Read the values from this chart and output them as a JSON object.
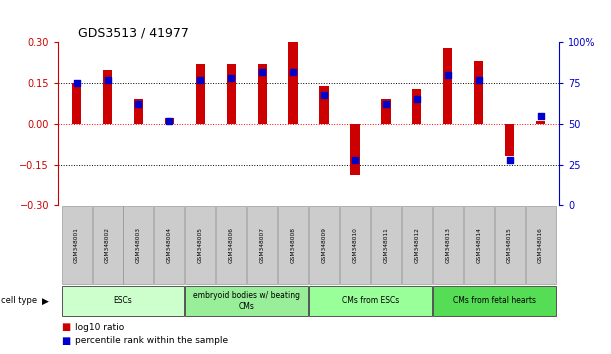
{
  "title": "GDS3513 / 41977",
  "samples": [
    "GSM348001",
    "GSM348002",
    "GSM348003",
    "GSM348004",
    "GSM348005",
    "GSM348006",
    "GSM348007",
    "GSM348008",
    "GSM348009",
    "GSM348010",
    "GSM348011",
    "GSM348012",
    "GSM348013",
    "GSM348014",
    "GSM348015",
    "GSM348016"
  ],
  "log10_ratio": [
    0.15,
    0.2,
    0.09,
    0.02,
    0.22,
    0.22,
    0.22,
    0.3,
    0.14,
    -0.19,
    0.09,
    0.13,
    0.28,
    0.23,
    -0.12,
    0.01
  ],
  "percentile_rank": [
    75,
    77,
    62,
    52,
    77,
    78,
    82,
    82,
    68,
    28,
    62,
    65,
    80,
    77,
    28,
    55
  ],
  "ylim_left": [
    -0.3,
    0.3
  ],
  "ylim_right": [
    0,
    100
  ],
  "yticks_left": [
    -0.3,
    -0.15,
    0,
    0.15,
    0.3
  ],
  "yticks_right": [
    0,
    25,
    50,
    75,
    100
  ],
  "ytick_labels_right": [
    "0",
    "25",
    "50",
    "75",
    "100%"
  ],
  "hline_dotted": [
    0.15,
    -0.15
  ],
  "bar_color": "#cc0000",
  "dot_color": "#0000cc",
  "cell_groups": [
    {
      "label": "ESCs",
      "start": 0,
      "end": 3,
      "color": "#ccffcc"
    },
    {
      "label": "embryoid bodies w/ beating\nCMs",
      "start": 4,
      "end": 7,
      "color": "#99ee99"
    },
    {
      "label": "CMs from ESCs",
      "start": 8,
      "end": 11,
      "color": "#99ff99"
    },
    {
      "label": "CMs from fetal hearts",
      "start": 12,
      "end": 15,
      "color": "#55dd55"
    }
  ],
  "left_axis_color": "#cc0000",
  "right_axis_color": "#0000cc",
  "background_color": "#ffffff",
  "sample_box_color": "#cccccc",
  "legend_bar_label": "log10 ratio",
  "legend_dot_label": "percentile rank within the sample"
}
